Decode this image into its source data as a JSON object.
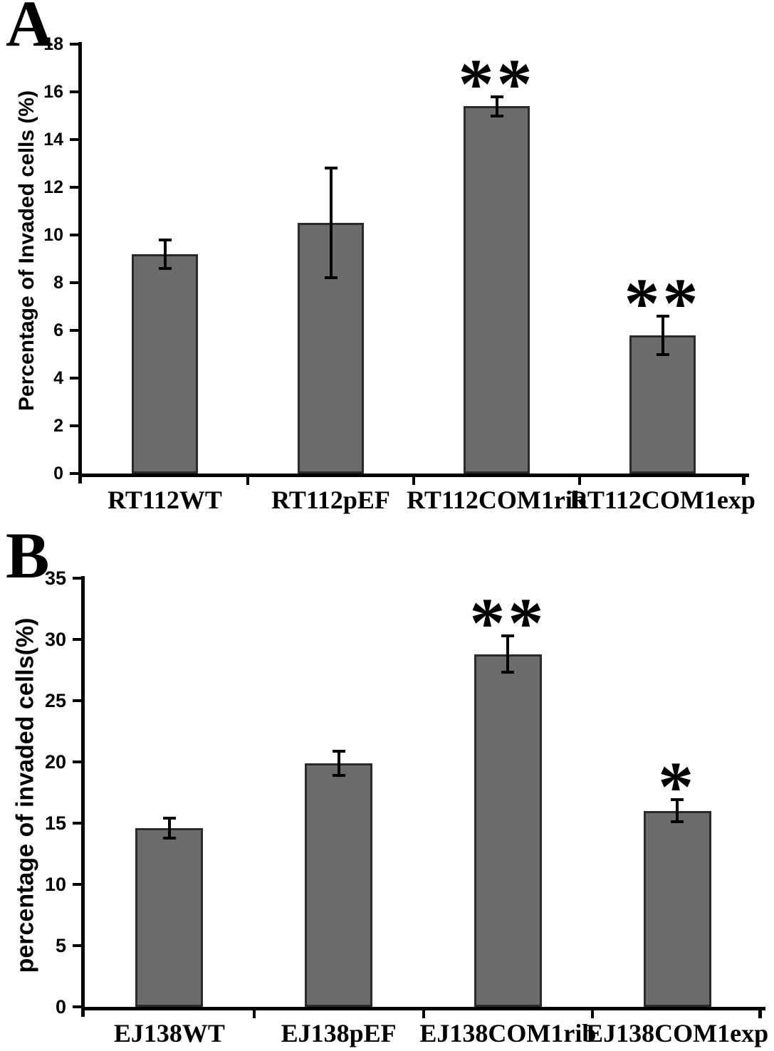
{
  "figure": {
    "background": "#ffffff",
    "bar_fill": "#6b6b6b",
    "bar_border": "#2a2a2a",
    "axis_color": "#000000",
    "error_bar_color": "#000000"
  },
  "chart_data": [
    {
      "panel_label": "A",
      "type": "bar",
      "title": "",
      "xlabel": "",
      "ylabel": "Percentage of Invaded cells (%)",
      "categories": [
        "RT112WT",
        "RT112pEF",
        "RT112COM1rib",
        "RT112COM1exp"
      ],
      "values": [
        9.2,
        10.5,
        15.4,
        5.8
      ],
      "errors": [
        0.6,
        2.3,
        0.4,
        0.8
      ],
      "significance": [
        "",
        "",
        "**",
        "**"
      ],
      "ylim": [
        0,
        18
      ],
      "ytick_step": 2,
      "yticks": [
        0,
        2,
        4,
        6,
        8,
        10,
        12,
        14,
        16,
        18
      ],
      "grid": false,
      "legend": null
    },
    {
      "panel_label": "B",
      "type": "bar",
      "title": "",
      "xlabel": "",
      "ylabel": "percentage of invaded cells(%)",
      "categories": [
        "EJ138WT",
        "EJ138pEF",
        "EJ138COM1rib",
        "EJ138COM1exp"
      ],
      "values": [
        14.6,
        19.9,
        28.8,
        16.0
      ],
      "errors": [
        0.8,
        1.0,
        1.5,
        0.9
      ],
      "significance": [
        "",
        "",
        "**",
        "*"
      ],
      "ylim": [
        0,
        35
      ],
      "ytick_step": 5,
      "yticks": [
        0,
        5,
        10,
        15,
        20,
        25,
        30,
        35
      ],
      "grid": false,
      "legend": null
    }
  ]
}
